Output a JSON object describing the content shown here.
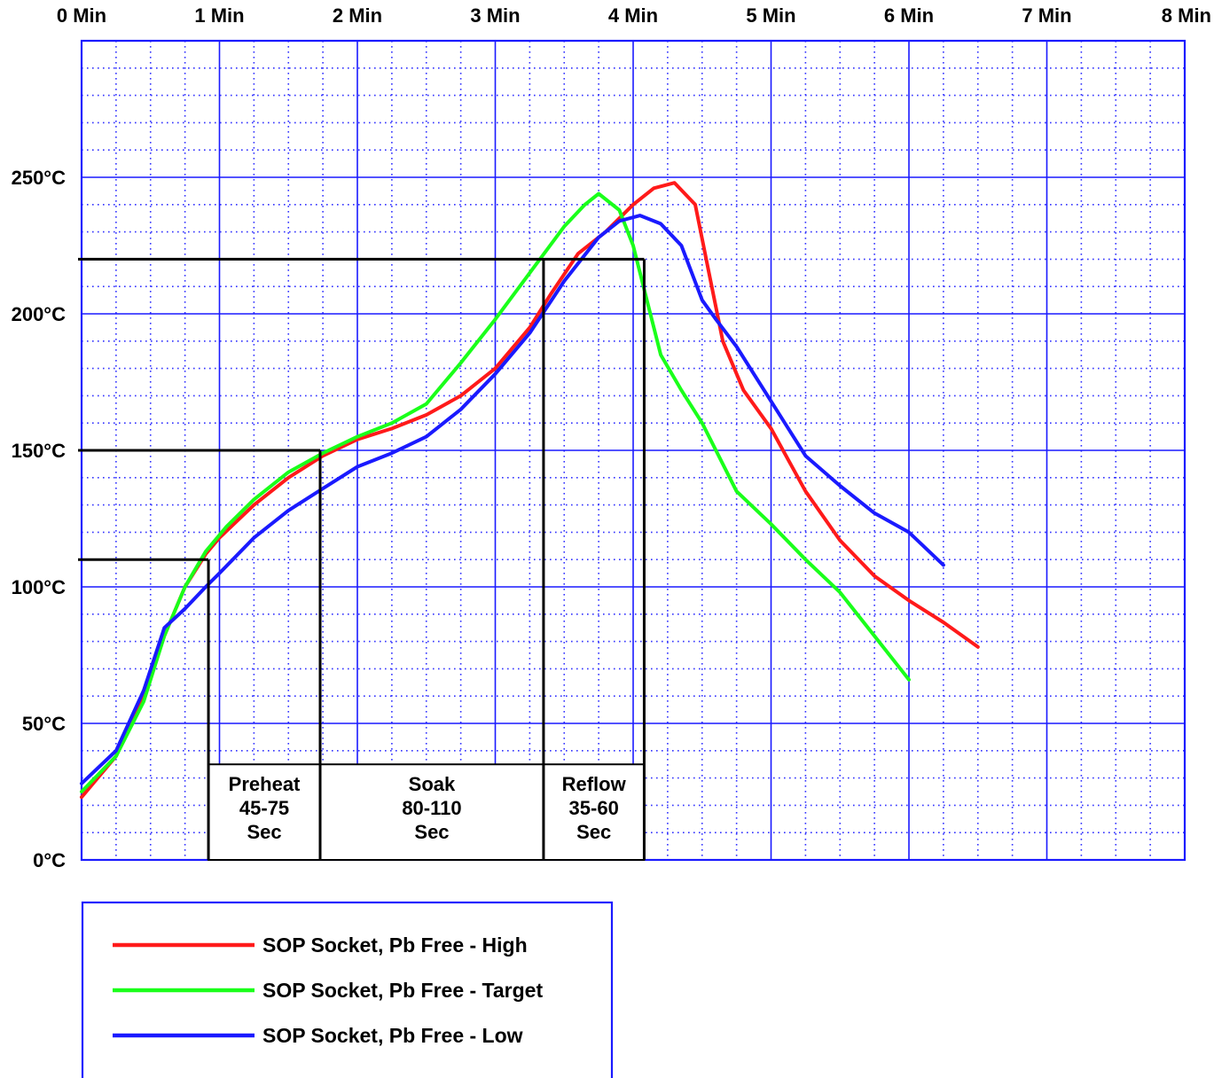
{
  "chart_data": {
    "type": "line",
    "title": "",
    "xlabel": "",
    "ylabel": "",
    "x_unit": "minutes",
    "y_unit": "°C",
    "xlim": [
      0,
      8
    ],
    "ylim": [
      0,
      300
    ],
    "x_ticks": [
      {
        "value": 0,
        "label": "0 Min"
      },
      {
        "value": 1,
        "label": "1 Min"
      },
      {
        "value": 2,
        "label": "2 Min"
      },
      {
        "value": 3,
        "label": "3 Min"
      },
      {
        "value": 4,
        "label": "4 Min"
      },
      {
        "value": 5,
        "label": "5 Min"
      },
      {
        "value": 6,
        "label": "6 Min"
      },
      {
        "value": 7,
        "label": "7 Min"
      },
      {
        "value": 8,
        "label": "8 Min"
      }
    ],
    "y_ticks": [
      {
        "value": 0,
        "label": "0°C"
      },
      {
        "value": 50,
        "label": "50°C"
      },
      {
        "value": 100,
        "label": "100°C"
      },
      {
        "value": 150,
        "label": "150°C"
      },
      {
        "value": 200,
        "label": "200°C"
      },
      {
        "value": 250,
        "label": "250°C"
      }
    ],
    "grid": {
      "major": true,
      "minor": true,
      "major_color": "#1a1aff",
      "minor_color": "#3333ff"
    },
    "legend": {
      "placement": "bottom-left"
    },
    "series": [
      {
        "name": "SOP Socket, Pb Free - High",
        "color": "#ff1a1a",
        "points": [
          [
            0,
            23
          ],
          [
            0.25,
            38
          ],
          [
            0.45,
            60
          ],
          [
            0.6,
            82
          ],
          [
            0.75,
            100
          ],
          [
            0.9,
            112
          ],
          [
            1.0,
            118
          ],
          [
            1.25,
            130
          ],
          [
            1.5,
            140
          ],
          [
            1.75,
            148
          ],
          [
            2.0,
            154
          ],
          [
            2.25,
            158
          ],
          [
            2.5,
            163
          ],
          [
            2.75,
            170
          ],
          [
            3.0,
            180
          ],
          [
            3.25,
            195
          ],
          [
            3.4,
            207
          ],
          [
            3.6,
            222
          ],
          [
            3.8,
            230
          ],
          [
            4.0,
            240
          ],
          [
            4.15,
            246
          ],
          [
            4.3,
            248
          ],
          [
            4.45,
            240
          ],
          [
            4.55,
            215
          ],
          [
            4.65,
            190
          ],
          [
            4.8,
            172
          ],
          [
            5.0,
            158
          ],
          [
            5.25,
            135
          ],
          [
            5.5,
            117
          ],
          [
            5.75,
            104
          ],
          [
            6.0,
            95
          ],
          [
            6.25,
            87
          ],
          [
            6.5,
            78
          ]
        ]
      },
      {
        "name": "SOP Socket, Pb Free - Target",
        "color": "#1aff1a",
        "points": [
          [
            0,
            25
          ],
          [
            0.25,
            38
          ],
          [
            0.45,
            58
          ],
          [
            0.6,
            82
          ],
          [
            0.75,
            100
          ],
          [
            0.9,
            113
          ],
          [
            1.05,
            122
          ],
          [
            1.25,
            132
          ],
          [
            1.5,
            142
          ],
          [
            1.75,
            149
          ],
          [
            2.0,
            155
          ],
          [
            2.25,
            160
          ],
          [
            2.5,
            167
          ],
          [
            2.75,
            182
          ],
          [
            3.0,
            198
          ],
          [
            3.25,
            215
          ],
          [
            3.5,
            232
          ],
          [
            3.65,
            240
          ],
          [
            3.75,
            244
          ],
          [
            3.9,
            238
          ],
          [
            4.0,
            225
          ],
          [
            4.1,
            205
          ],
          [
            4.2,
            185
          ],
          [
            4.35,
            172
          ],
          [
            4.5,
            160
          ],
          [
            4.75,
            135
          ],
          [
            5.0,
            123
          ],
          [
            5.25,
            110
          ],
          [
            5.5,
            98
          ],
          [
            5.75,
            82
          ],
          [
            6.0,
            66
          ]
        ]
      },
      {
        "name": "SOP Socket, Pb Free - Low",
        "color": "#1a1aff",
        "points": [
          [
            0,
            28
          ],
          [
            0.25,
            40
          ],
          [
            0.45,
            62
          ],
          [
            0.6,
            85
          ],
          [
            0.75,
            92
          ],
          [
            0.9,
            100
          ],
          [
            1.0,
            105
          ],
          [
            1.25,
            118
          ],
          [
            1.5,
            128
          ],
          [
            1.75,
            136
          ],
          [
            2.0,
            144
          ],
          [
            2.25,
            149
          ],
          [
            2.5,
            155
          ],
          [
            2.75,
            165
          ],
          [
            3.0,
            178
          ],
          [
            3.25,
            193
          ],
          [
            3.5,
            212
          ],
          [
            3.75,
            228
          ],
          [
            3.9,
            234
          ],
          [
            4.05,
            236
          ],
          [
            4.2,
            233
          ],
          [
            4.35,
            225
          ],
          [
            4.5,
            205
          ],
          [
            4.6,
            198
          ],
          [
            4.75,
            188
          ],
          [
            5.0,
            168
          ],
          [
            5.25,
            148
          ],
          [
            5.5,
            137
          ],
          [
            5.75,
            127
          ],
          [
            6.0,
            120
          ],
          [
            6.25,
            108
          ]
        ]
      }
    ],
    "reference_lines": [
      {
        "y": 110,
        "x_end": 0.92
      },
      {
        "y": 150,
        "x_end": 1.73
      },
      {
        "y": 220,
        "x_end": 4.08
      },
      {
        "x": 0.92,
        "y_top": 110
      },
      {
        "x": 1.73,
        "y_top": 150
      },
      {
        "x": 3.35,
        "y_top": 220
      },
      {
        "x": 4.08,
        "y_top": 220
      }
    ],
    "phases": [
      {
        "name": "Preheat",
        "range": "45-75",
        "unit": "Sec",
        "x_start": 0.92,
        "x_end": 1.73
      },
      {
        "name": "Soak",
        "range": "80-110",
        "unit": "Sec",
        "x_start": 1.73,
        "x_end": 3.35
      },
      {
        "name": "Reflow",
        "range": "35-60",
        "unit": "Sec",
        "x_start": 3.35,
        "x_end": 4.08
      }
    ],
    "phase_box_top": 35
  }
}
